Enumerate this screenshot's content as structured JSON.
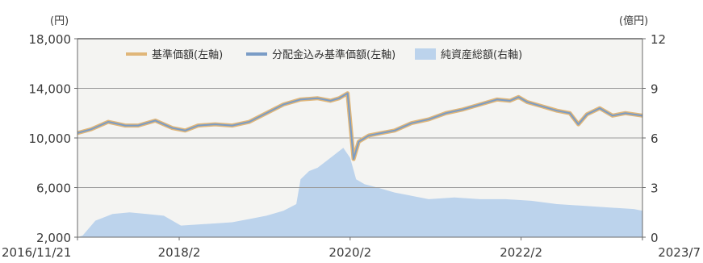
{
  "chart_data": {
    "type": "line",
    "title": "",
    "y_left": {
      "unit_label": "(円)",
      "ticks": [
        "2,000",
        "6,000",
        "10,000",
        "14,000",
        "18,000"
      ],
      "ticks_value": [
        2000,
        6000,
        10000,
        14000,
        18000
      ],
      "ylim": [
        2000,
        18000
      ]
    },
    "y_right": {
      "unit_label": "(億円)",
      "ticks": [
        "0",
        "3",
        "6",
        "9",
        "12"
      ],
      "ticks_value": [
        0,
        3,
        6,
        9,
        12
      ],
      "ylim": [
        0,
        12
      ]
    },
    "x_ticks": [
      "2016/11/21",
      "2018/2",
      "2020/2",
      "2022/2",
      "2023/7"
    ],
    "x_ticks_value": [
      2016.89,
      2018.08,
      2020.08,
      2022.08,
      2023.5
    ],
    "xlim": [
      2016.89,
      2023.5
    ],
    "grid": true,
    "legend_position": "top",
    "legend": [
      {
        "name": "基準価額(左軸)",
        "kind": "line",
        "color": "#e0b679"
      },
      {
        "name": "分配金込み基準価額(左軸)",
        "kind": "line",
        "color": "#7a9cc6"
      },
      {
        "name": "純資産総額(右軸)",
        "kind": "area",
        "color": "#bcd3ec"
      }
    ],
    "series": [
      {
        "name": "基準価額(左軸)",
        "axis": "left",
        "color": "#e0b679",
        "x": [
          2016.89,
          2017.05,
          2017.25,
          2017.45,
          2017.6,
          2017.8,
          2018.0,
          2018.15,
          2018.3,
          2018.5,
          2018.7,
          2018.9,
          2019.1,
          2019.3,
          2019.5,
          2019.7,
          2019.85,
          2019.95,
          2020.05,
          2020.12,
          2020.18,
          2020.3,
          2020.45,
          2020.6,
          2020.8,
          2021.0,
          2021.2,
          2021.4,
          2021.6,
          2021.8,
          2021.95,
          2022.05,
          2022.15,
          2022.3,
          2022.5,
          2022.65,
          2022.75,
          2022.85,
          2023.0,
          2023.15,
          2023.3,
          2023.5
        ],
        "y": [
          10400,
          10700,
          11300,
          11000,
          11000,
          11400,
          10800,
          10600,
          11000,
          11100,
          11000,
          11300,
          12000,
          12700,
          13100,
          13200,
          13000,
          13200,
          13600,
          8300,
          9700,
          10200,
          10400,
          10600,
          11200,
          11500,
          12000,
          12300,
          12700,
          13100,
          13000,
          13300,
          12900,
          12600,
          12200,
          12000,
          11100,
          11900,
          12400,
          11800,
          12000,
          11800
        ]
      },
      {
        "name": "分配金込み基準価額(左軸)",
        "axis": "left",
        "color": "#7a9cc6",
        "x": [
          2016.89,
          2017.05,
          2017.25,
          2017.45,
          2017.6,
          2017.8,
          2018.0,
          2018.15,
          2018.3,
          2018.5,
          2018.7,
          2018.9,
          2019.1,
          2019.3,
          2019.5,
          2019.7,
          2019.85,
          2019.95,
          2020.05,
          2020.12,
          2020.18,
          2020.3,
          2020.45,
          2020.6,
          2020.8,
          2021.0,
          2021.2,
          2021.4,
          2021.6,
          2021.8,
          2021.95,
          2022.05,
          2022.15,
          2022.3,
          2022.5,
          2022.65,
          2022.75,
          2022.85,
          2023.0,
          2023.15,
          2023.3,
          2023.5
        ],
        "y": [
          10400,
          10700,
          11300,
          11000,
          11000,
          11400,
          10800,
          10600,
          11000,
          11100,
          11000,
          11300,
          12000,
          12700,
          13100,
          13200,
          13000,
          13200,
          13600,
          8300,
          9700,
          10200,
          10400,
          10600,
          11200,
          11500,
          12000,
          12300,
          12700,
          13100,
          13000,
          13300,
          12900,
          12600,
          12200,
          12000,
          11100,
          11900,
          12400,
          11800,
          12000,
          11800
        ]
      },
      {
        "name": "純資産総額(右軸)",
        "axis": "right",
        "color": "#bcd3ec",
        "x": [
          2016.89,
          2016.95,
          2017.1,
          2017.3,
          2017.5,
          2017.7,
          2017.9,
          2018.1,
          2018.4,
          2018.7,
          2018.9,
          2019.1,
          2019.3,
          2019.45,
          2019.5,
          2019.6,
          2019.7,
          2019.85,
          2020.0,
          2020.08,
          2020.15,
          2020.25,
          2020.4,
          2020.6,
          2020.8,
          2021.0,
          2021.3,
          2021.6,
          2021.9,
          2022.2,
          2022.5,
          2022.8,
          2023.1,
          2023.4,
          2023.5
        ],
        "y": [
          0.0,
          0.1,
          1.0,
          1.4,
          1.5,
          1.4,
          1.3,
          0.7,
          0.8,
          0.9,
          1.1,
          1.3,
          1.6,
          2.0,
          3.5,
          4.0,
          4.2,
          4.8,
          5.4,
          4.8,
          3.5,
          3.2,
          3.0,
          2.7,
          2.5,
          2.3,
          2.4,
          2.3,
          2.3,
          2.2,
          2.0,
          1.9,
          1.8,
          1.7,
          1.6
        ]
      }
    ]
  }
}
